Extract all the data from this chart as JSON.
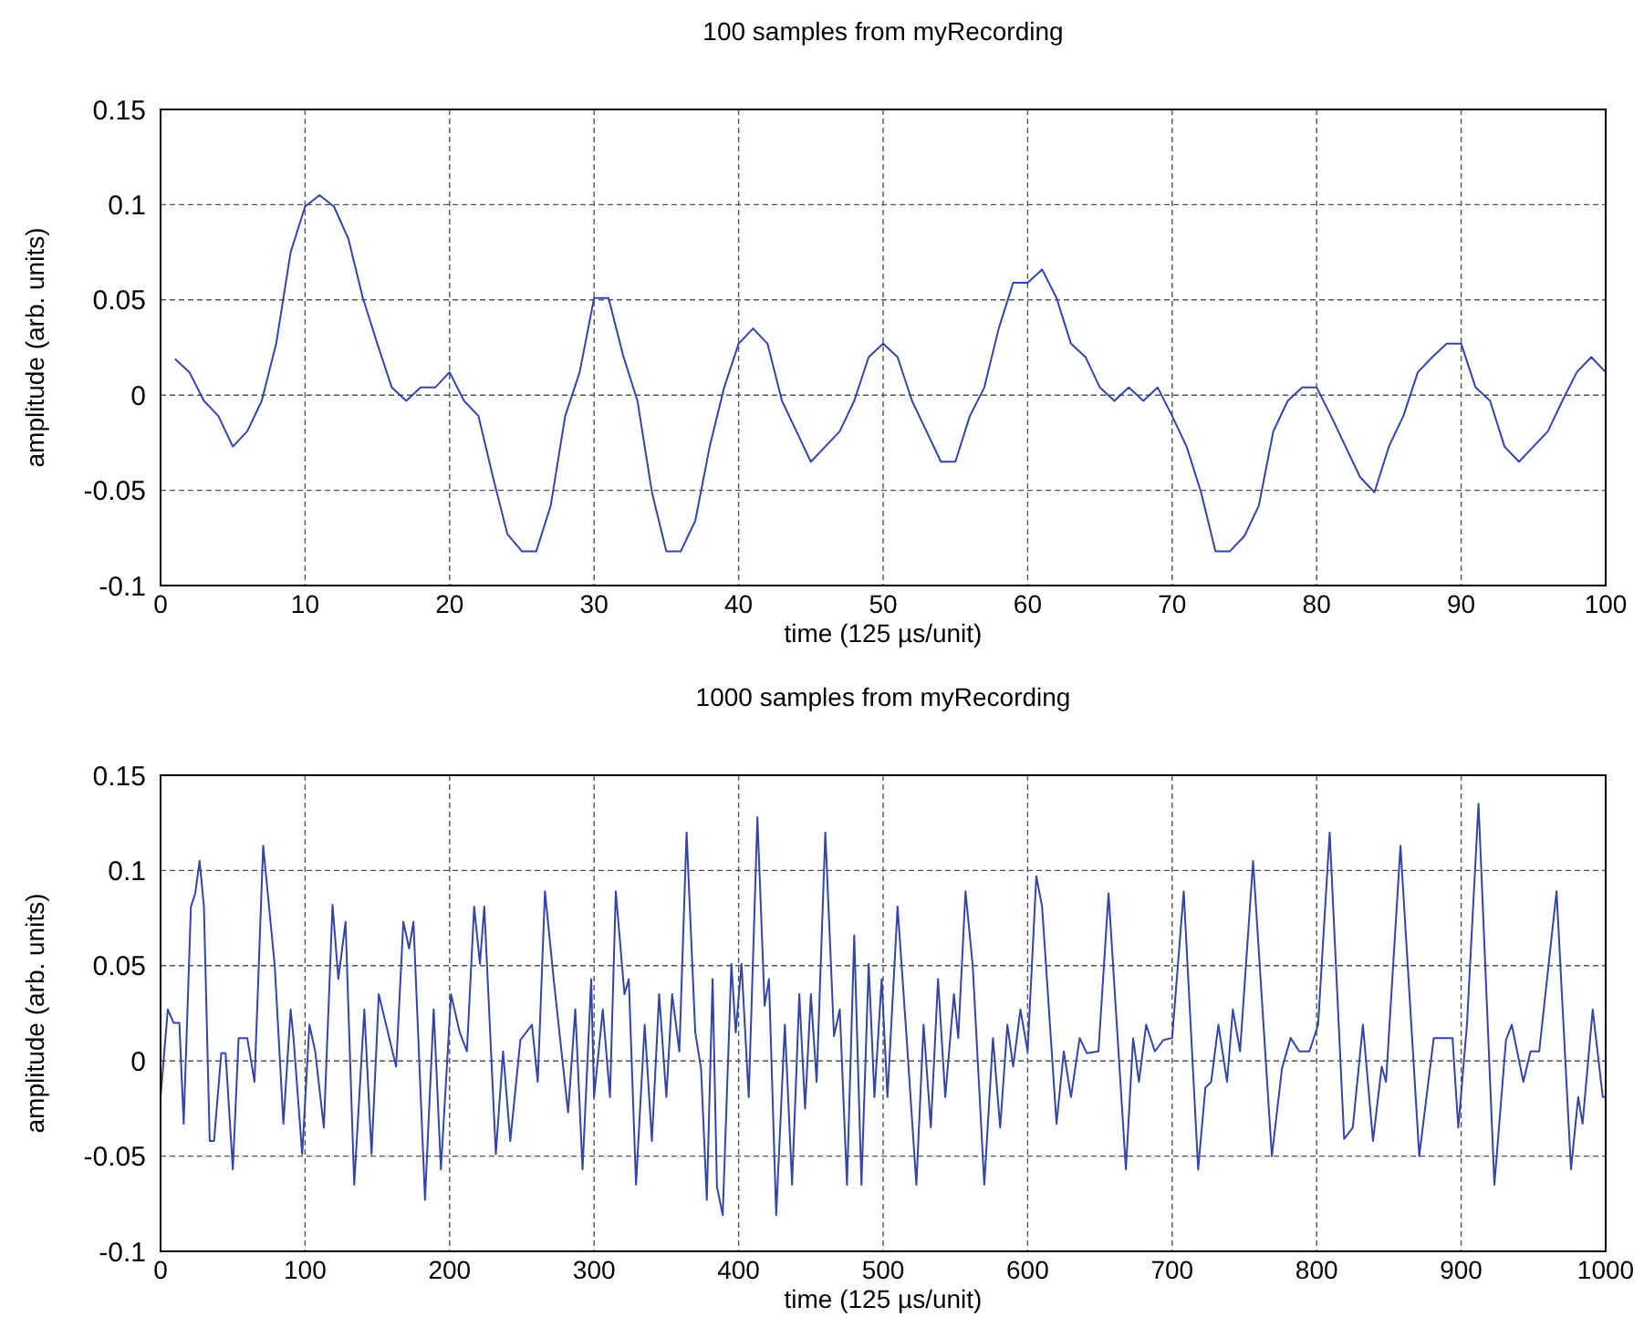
{
  "chart_data": [
    {
      "type": "line",
      "title": "100 samples from myRecording",
      "xlabel": "time (125 µs/unit)",
      "ylabel": "amplitude (arb. units)",
      "xlim": [
        0,
        100
      ],
      "xticks": [
        0,
        10,
        20,
        30,
        40,
        50,
        60,
        70,
        80,
        90,
        100
      ],
      "ylim": [
        -0.1,
        0.15
      ],
      "yticks": [
        -0.1,
        -0.05,
        0,
        0.05,
        0.1,
        0.15
      ],
      "grid": true,
      "series": [
        {
          "color": "#3344aa",
          "x": [
            1,
            2,
            3,
            4,
            5,
            6,
            7,
            8,
            9,
            10,
            11,
            12,
            13,
            14,
            15,
            16,
            17,
            18,
            19,
            20,
            21,
            22,
            23,
            24,
            25,
            26,
            27,
            28,
            29,
            30,
            31,
            32,
            33,
            34,
            35,
            36,
            37,
            38,
            39,
            40,
            41,
            42,
            43,
            44,
            45,
            46,
            47,
            48,
            49,
            50,
            51,
            52,
            53,
            54,
            55,
            56,
            57,
            58,
            59,
            60,
            61,
            62,
            63,
            64,
            65,
            66,
            67,
            68,
            69,
            70,
            71,
            72,
            73,
            74,
            75,
            76,
            77,
            78,
            79,
            80,
            81,
            82,
            83,
            84,
            85,
            86,
            87,
            88,
            89,
            90,
            91,
            92,
            93,
            94,
            95,
            96,
            97,
            98,
            99,
            100
          ],
          "values": [
            0.019,
            0.012,
            -0.003,
            -0.011,
            -0.027,
            -0.019,
            -0.003,
            0.027,
            0.075,
            0.099,
            0.105,
            0.099,
            0.082,
            0.051,
            0.027,
            0.004,
            -0.003,
            0.004,
            0.004,
            0.012,
            -0.003,
            -0.011,
            -0.043,
            -0.073,
            -0.082,
            -0.082,
            -0.058,
            -0.011,
            0.012,
            0.051,
            0.051,
            0.021,
            -0.003,
            -0.051,
            -0.082,
            -0.082,
            -0.066,
            -0.027,
            0.004,
            0.027,
            0.035,
            0.027,
            -0.003,
            -0.019,
            -0.035,
            -0.027,
            -0.019,
            -0.003,
            0.02,
            0.027,
            0.02,
            -0.003,
            -0.019,
            -0.035,
            -0.035,
            -0.011,
            0.004,
            0.035,
            0.059,
            0.059,
            0.066,
            0.051,
            0.027,
            0.02,
            0.004,
            -0.003,
            0.004,
            -0.003,
            0.004,
            -0.011,
            -0.027,
            -0.051,
            -0.082,
            -0.082,
            -0.074,
            -0.058,
            -0.019,
            -0.003,
            0.004,
            0.004,
            -0.011,
            -0.027,
            -0.043,
            -0.051,
            -0.027,
            -0.011,
            0.012,
            0.02,
            0.027,
            0.027,
            0.004,
            -0.003,
            -0.027,
            -0.035,
            -0.027,
            -0.019,
            -0.003,
            0.012,
            0.02,
            0.012
          ]
        }
      ]
    },
    {
      "type": "line",
      "title": "1000 samples from myRecording",
      "xlabel": "time (125 µs/unit)",
      "ylabel": "amplitude (arb. units)",
      "xlim": [
        0,
        1000
      ],
      "xticks": [
        0,
        100,
        200,
        300,
        400,
        500,
        600,
        700,
        800,
        900,
        1000
      ],
      "ylim": [
        -0.1,
        0.15
      ],
      "yticks": [
        -0.1,
        -0.05,
        0,
        0.05,
        0.1,
        0.15
      ],
      "grid": true,
      "series": [
        {
          "color": "#3344aa",
          "x": [
            0,
            5,
            9,
            13,
            16,
            21,
            24,
            27,
            30,
            34,
            37,
            42,
            45,
            50,
            54,
            60,
            65,
            71,
            79,
            85,
            90,
            92,
            98,
            103,
            107,
            113,
            119,
            123,
            128,
            134,
            141,
            146,
            151,
            163,
            168,
            172,
            175,
            183,
            189,
            194,
            201,
            207,
            212,
            217,
            221,
            224,
            232,
            237,
            242,
            249,
            257,
            261,
            266,
            272,
            282,
            287,
            292,
            298,
            300,
            306,
            311,
            315,
            321,
            324,
            329,
            335,
            340,
            345,
            350,
            354,
            359,
            364,
            370,
            374,
            378,
            382,
            385,
            389,
            395,
            398,
            402,
            407,
            413,
            418,
            421,
            426,
            432,
            437,
            442,
            446,
            450,
            454,
            460,
            466,
            470,
            475,
            480,
            485,
            490,
            494,
            499,
            503,
            510,
            516,
            523,
            528,
            533,
            538,
            543,
            549,
            552,
            557,
            562,
            570,
            576,
            581,
            586,
            590,
            595,
            600,
            606,
            610,
            620,
            625,
            630,
            636,
            641,
            649,
            656,
            668,
            673,
            677,
            682,
            688,
            694,
            700,
            708,
            718,
            723,
            727,
            732,
            738,
            742,
            747,
            756,
            769,
            776,
            782,
            788,
            795,
            801,
            809,
            819,
            825,
            832,
            839,
            845,
            848,
            858,
            871,
            881,
            894,
            898,
            904,
            912,
            923,
            931,
            935,
            943,
            948,
            954,
            966,
            976,
            981,
            984,
            991,
            998,
            1000
          ],
          "values": [
            -0.019,
            0.027,
            0.02,
            0.02,
            -0.033,
            0.081,
            0.088,
            0.105,
            0.081,
            -0.042,
            -0.042,
            0.004,
            0.004,
            -0.057,
            0.012,
            0.012,
            -0.011,
            0.113,
            0.05,
            -0.033,
            0.027,
            0.012,
            -0.049,
            0.019,
            0.005,
            -0.035,
            0.082,
            0.043,
            0.073,
            -0.065,
            0.027,
            -0.049,
            0.035,
            -0.003,
            0.073,
            0.059,
            0.073,
            -0.073,
            0.027,
            -0.057,
            0.035,
            0.015,
            0.005,
            0.081,
            0.051,
            0.081,
            -0.049,
            0.005,
            -0.042,
            0.011,
            0.019,
            -0.011,
            0.089,
            0.043,
            -0.027,
            0.027,
            -0.057,
            0.043,
            -0.019,
            0.027,
            -0.019,
            0.089,
            0.035,
            0.043,
            -0.065,
            0.019,
            -0.042,
            0.035,
            -0.019,
            0.035,
            0.005,
            0.12,
            0.015,
            -0.004,
            -0.073,
            0.043,
            -0.066,
            -0.081,
            0.051,
            0.015,
            0.051,
            -0.019,
            0.128,
            0.029,
            0.043,
            -0.081,
            0.019,
            -0.065,
            0.035,
            -0.025,
            0.035,
            -0.011,
            0.12,
            0.013,
            0.027,
            -0.065,
            0.066,
            -0.065,
            0.051,
            -0.019,
            0.043,
            -0.019,
            0.081,
            0.015,
            -0.065,
            0.019,
            -0.035,
            0.043,
            -0.019,
            0.035,
            0.012,
            0.089,
            0.05,
            -0.065,
            0.012,
            -0.035,
            0.019,
            -0.003,
            0.027,
            0.005,
            0.097,
            0.081,
            -0.033,
            0.005,
            -0.019,
            0.012,
            0.004,
            0.005,
            0.088,
            -0.057,
            0.012,
            -0.011,
            0.019,
            0.005,
            0.011,
            0.012,
            0.089,
            -0.057,
            -0.014,
            -0.011,
            0.019,
            -0.011,
            0.027,
            0.005,
            0.105,
            -0.05,
            -0.004,
            0.012,
            0.005,
            0.005,
            0.019,
            0.12,
            -0.041,
            -0.035,
            0.019,
            -0.042,
            -0.003,
            -0.011,
            0.113,
            -0.05,
            0.012,
            0.012,
            -0.035,
            0.019,
            0.135,
            -0.065,
            0.011,
            0.019,
            -0.011,
            0.005,
            0.005,
            0.089,
            -0.057,
            -0.019,
            -0.033,
            0.027,
            -0.019,
            -0.019
          ]
        }
      ]
    }
  ]
}
